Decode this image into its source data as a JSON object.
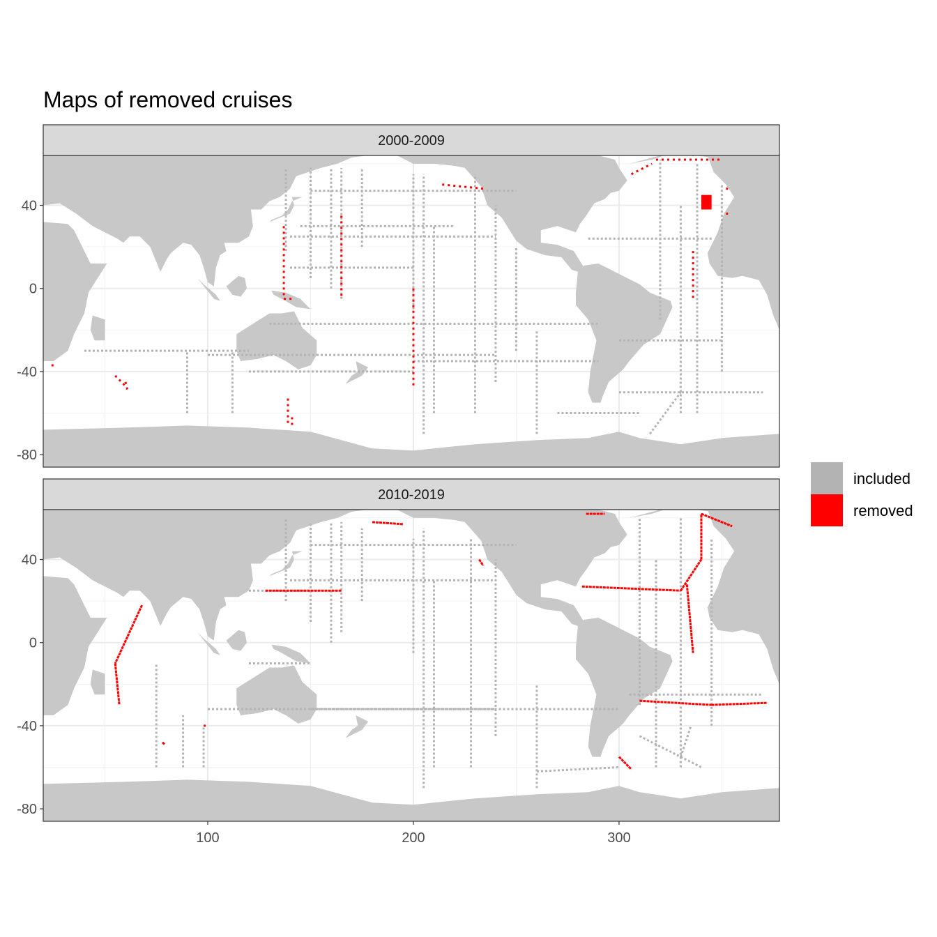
{
  "chart_data": {
    "type": "scatter",
    "title": "Maps of removed cruises",
    "xlabel": "",
    "ylabel": "",
    "xlim": [
      20,
      378
    ],
    "ylim": [
      -86,
      64
    ],
    "x_ticks": [
      100,
      200,
      300
    ],
    "x_tick_labels": [
      "100",
      "200",
      "300"
    ],
    "y_ticks": [
      40,
      0,
      -40,
      -80
    ],
    "y_tick_labels": [
      "40",
      "0",
      "-40",
      "-80"
    ],
    "grid": true,
    "legend_position": "right",
    "legend": [
      {
        "label": "included",
        "color": "#b3b3b3"
      },
      {
        "label": "removed",
        "color": "#ff0000"
      }
    ],
    "land_color": "#c8c8c8",
    "panels": [
      {
        "strip": "2000-2009",
        "included_tracks": [
          [
            [
              138,
              18
            ],
            [
              138,
              58
            ]
          ],
          [
            [
              150,
              5
            ],
            [
              150,
              58
            ]
          ],
          [
            [
              160,
              0
            ],
            [
              160,
              58
            ]
          ],
          [
            [
              165,
              -5
            ],
            [
              165,
              58
            ]
          ],
          [
            [
              175,
              20
            ],
            [
              175,
              58
            ]
          ],
          [
            [
              200,
              -10
            ],
            [
              200,
              55
            ]
          ],
          [
            [
              205,
              -70
            ],
            [
              205,
              55
            ]
          ],
          [
            [
              210,
              -60
            ],
            [
              210,
              30
            ]
          ],
          [
            [
              230,
              -60
            ],
            [
              230,
              55
            ]
          ],
          [
            [
              240,
              -45
            ],
            [
              240,
              40
            ]
          ],
          [
            [
              250,
              -30
            ],
            [
              250,
              20
            ]
          ],
          [
            [
              260,
              -70
            ],
            [
              260,
              -20
            ]
          ],
          [
            [
              320,
              -15
            ],
            [
              320,
              62
            ]
          ],
          [
            [
              330,
              -60
            ],
            [
              330,
              40
            ]
          ],
          [
            [
              338,
              -60
            ],
            [
              338,
              60
            ]
          ],
          [
            [
              350,
              -40
            ],
            [
              350,
              50
            ]
          ],
          [
            [
              100,
              -32
            ],
            [
              240,
              -32
            ]
          ],
          [
            [
              130,
              -17
            ],
            [
              290,
              -17
            ]
          ],
          [
            [
              200,
              -35
            ],
            [
              290,
              -35
            ]
          ],
          [
            [
              120,
              -40
            ],
            [
              200,
              -40
            ]
          ],
          [
            [
              140,
              25
            ],
            [
              240,
              25
            ]
          ],
          [
            [
              145,
              30
            ],
            [
              220,
              30
            ]
          ],
          [
            [
              150,
              47
            ],
            [
              250,
              47
            ]
          ],
          [
            [
              285,
              24
            ],
            [
              345,
              24
            ]
          ],
          [
            [
              300,
              -25
            ],
            [
              350,
              -25
            ]
          ],
          [
            [
              300,
              -50
            ],
            [
              370,
              -50
            ]
          ],
          [
            [
              140,
              10
            ],
            [
              200,
              10
            ]
          ],
          [
            [
              40,
              -30
            ],
            [
              120,
              -30
            ]
          ],
          [
            [
              90,
              -60
            ],
            [
              90,
              -30
            ]
          ],
          [
            [
              112,
              -60
            ],
            [
              112,
              -30
            ]
          ],
          [
            [
              270,
              -60
            ],
            [
              310,
              -60
            ]
          ],
          [
            [
              315,
              -70
            ],
            [
              330,
              -50
            ]
          ]
        ],
        "removed_tracks": [
          [
            [
              55,
              -42
            ],
            [
              60,
              -47
            ]
          ],
          [
            [
              60,
              -45
            ],
            [
              61,
              -49
            ]
          ],
          [
            [
              24,
              -37
            ],
            [
              25,
              -37
            ]
          ],
          [
            [
              137,
              30
            ],
            [
              137,
              -5
            ]
          ],
          [
            [
              137,
              -5
            ],
            [
              142,
              -5
            ]
          ],
          [
            [
              165,
              35
            ],
            [
              165,
              -5
            ]
          ],
          [
            [
              200,
              0
            ],
            [
              200,
              -47
            ]
          ],
          [
            [
              139,
              -53
            ],
            [
              139,
              -66
            ]
          ],
          [
            [
              141,
              -62
            ],
            [
              141,
              -66
            ]
          ],
          [
            [
              214,
              50
            ],
            [
              234,
              48
            ]
          ],
          [
            [
              306,
              55
            ],
            [
              316,
              60
            ]
          ],
          [
            [
              318,
              62
            ],
            [
              350,
              62
            ]
          ],
          [
            [
              330,
              65
            ],
            [
              338,
              64
            ]
          ],
          [
            [
              336,
              18
            ],
            [
              336,
              -5
            ]
          ],
          [
            [
              352,
              48
            ],
            [
              353,
              48
            ]
          ],
          [
            [
              352,
              36
            ],
            [
              353,
              36
            ]
          ]
        ],
        "removed_blocks": [
          [
            [
              340,
              38
            ],
            [
              345,
              45
            ]
          ]
        ]
      },
      {
        "strip": "2010-2019",
        "included_tracks": [
          [
            [
              138,
              20
            ],
            [
              138,
              60
            ]
          ],
          [
            [
              150,
              10
            ],
            [
              150,
              58
            ]
          ],
          [
            [
              160,
              0
            ],
            [
              160,
              58
            ]
          ],
          [
            [
              165,
              5
            ],
            [
              165,
              58
            ]
          ],
          [
            [
              175,
              20
            ],
            [
              175,
              55
            ]
          ],
          [
            [
              200,
              -5
            ],
            [
              200,
              50
            ]
          ],
          [
            [
              205,
              -70
            ],
            [
              205,
              55
            ]
          ],
          [
            [
              210,
              -60
            ],
            [
              210,
              30
            ]
          ],
          [
            [
              228,
              -60
            ],
            [
              228,
              50
            ]
          ],
          [
            [
              240,
              -45
            ],
            [
              240,
              40
            ]
          ],
          [
            [
              260,
              -70
            ],
            [
              260,
              -20
            ]
          ],
          [
            [
              310,
              -30
            ],
            [
              310,
              60
            ]
          ],
          [
            [
              318,
              -60
            ],
            [
              318,
              40
            ]
          ],
          [
            [
              330,
              -60
            ],
            [
              330,
              60
            ]
          ],
          [
            [
              345,
              -40
            ],
            [
              345,
              50
            ]
          ],
          [
            [
              100,
              -32
            ],
            [
              240,
              -32
            ]
          ],
          [
            [
              150,
              -32
            ],
            [
              300,
              -32
            ]
          ],
          [
            [
              140,
              30
            ],
            [
              240,
              30
            ]
          ],
          [
            [
              150,
              47
            ],
            [
              250,
              47
            ]
          ],
          [
            [
              305,
              -25
            ],
            [
              370,
              -25
            ]
          ],
          [
            [
              310,
              -45
            ],
            [
              340,
              -60
            ]
          ],
          [
            [
              330,
              -55
            ],
            [
              335,
              -40
            ]
          ],
          [
            [
              75,
              -60
            ],
            [
              75,
              -10
            ]
          ],
          [
            [
              88,
              -60
            ],
            [
              88,
              -35
            ]
          ],
          [
            [
              98,
              -60
            ],
            [
              98,
              -40
            ]
          ],
          [
            [
              260,
              -62
            ],
            [
              300,
              -60
            ]
          ],
          [
            [
              120,
              25
            ],
            [
              150,
              25
            ]
          ],
          [
            [
              120,
              -10
            ],
            [
              150,
              -10
            ]
          ]
        ],
        "removed_tracks": [
          [
            [
              68,
              18
            ],
            [
              55,
              -10
            ]
          ],
          [
            [
              55,
              -10
            ],
            [
              57,
              -30
            ]
          ],
          [
            [
              98,
              -40
            ],
            [
              99,
              -40
            ]
          ],
          [
            [
              78,
              -48
            ],
            [
              79,
              -49
            ]
          ],
          [
            [
              128,
              25
            ],
            [
              165,
              25
            ]
          ],
          [
            [
              180,
              58
            ],
            [
              195,
              57
            ]
          ],
          [
            [
              232,
              40
            ],
            [
              234,
              37
            ]
          ],
          [
            [
              282,
              27
            ],
            [
              330,
              25
            ]
          ],
          [
            [
              330,
              25
            ],
            [
              340,
              40
            ]
          ],
          [
            [
              340,
              40
            ],
            [
              340,
              62
            ]
          ],
          [
            [
              333,
              28
            ],
            [
              336,
              -5
            ]
          ],
          [
            [
              340,
              62
            ],
            [
              355,
              56
            ]
          ],
          [
            [
              284,
              62
            ],
            [
              293,
              62
            ]
          ],
          [
            [
              310,
              -28
            ],
            [
              345,
              -30
            ]
          ],
          [
            [
              345,
              -30
            ],
            [
              372,
              -29
            ]
          ],
          [
            [
              300,
              -55
            ],
            [
              306,
              -61
            ]
          ]
        ],
        "removed_blocks": []
      }
    ]
  }
}
